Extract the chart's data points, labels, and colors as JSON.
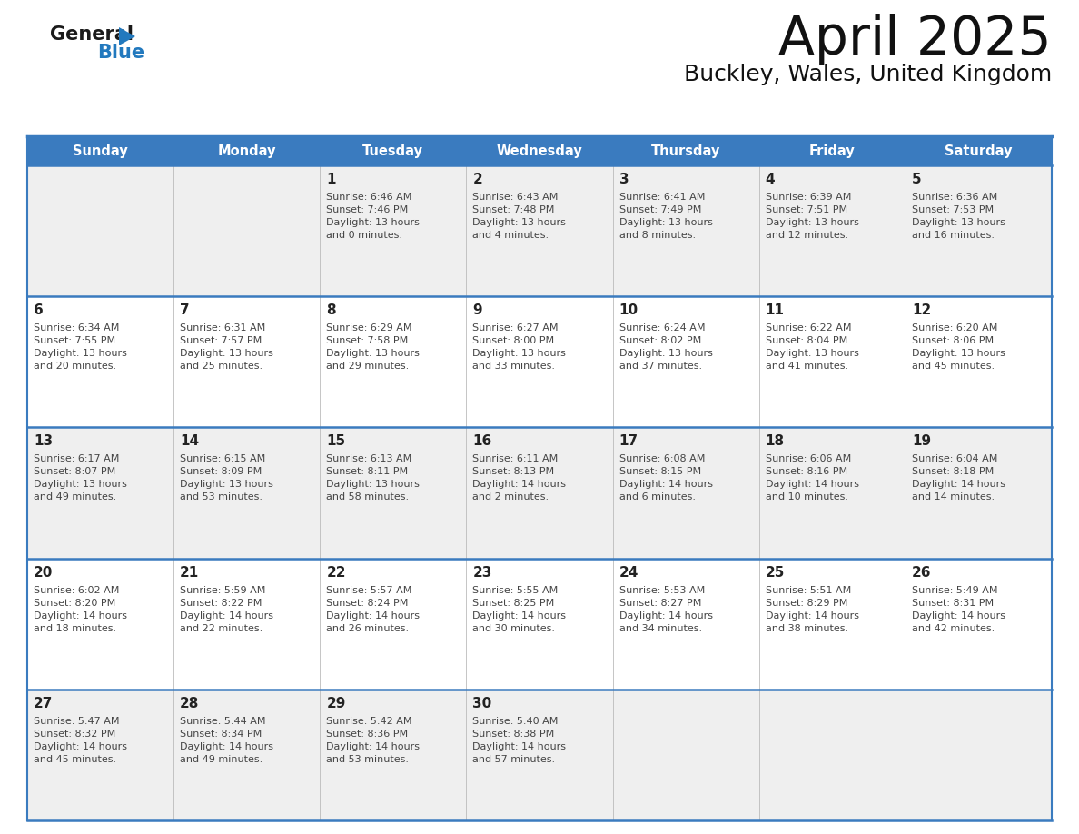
{
  "title": "April 2025",
  "subtitle": "Buckley, Wales, United Kingdom",
  "header_bg_color": "#3a7bbf",
  "header_text_color": "#ffffff",
  "days_of_week": [
    "Sunday",
    "Monday",
    "Tuesday",
    "Wednesday",
    "Thursday",
    "Friday",
    "Saturday"
  ],
  "row_bg_colors": [
    "#efefef",
    "#ffffff",
    "#efefef",
    "#ffffff",
    "#efefef"
  ],
  "grid_line_color": "#3a7bbf",
  "cell_border_color": "#3a7bbf",
  "text_color": "#444444",
  "day_num_color": "#222222",
  "logo_color": "#2279be",
  "logo_black": "#1a1a1a",
  "weeks": [
    {
      "days": [
        {
          "date": "",
          "info": ""
        },
        {
          "date": "",
          "info": ""
        },
        {
          "date": "1",
          "info": "Sunrise: 6:46 AM\nSunset: 7:46 PM\nDaylight: 13 hours\nand 0 minutes."
        },
        {
          "date": "2",
          "info": "Sunrise: 6:43 AM\nSunset: 7:48 PM\nDaylight: 13 hours\nand 4 minutes."
        },
        {
          "date": "3",
          "info": "Sunrise: 6:41 AM\nSunset: 7:49 PM\nDaylight: 13 hours\nand 8 minutes."
        },
        {
          "date": "4",
          "info": "Sunrise: 6:39 AM\nSunset: 7:51 PM\nDaylight: 13 hours\nand 12 minutes."
        },
        {
          "date": "5",
          "info": "Sunrise: 6:36 AM\nSunset: 7:53 PM\nDaylight: 13 hours\nand 16 minutes."
        }
      ]
    },
    {
      "days": [
        {
          "date": "6",
          "info": "Sunrise: 6:34 AM\nSunset: 7:55 PM\nDaylight: 13 hours\nand 20 minutes."
        },
        {
          "date": "7",
          "info": "Sunrise: 6:31 AM\nSunset: 7:57 PM\nDaylight: 13 hours\nand 25 minutes."
        },
        {
          "date": "8",
          "info": "Sunrise: 6:29 AM\nSunset: 7:58 PM\nDaylight: 13 hours\nand 29 minutes."
        },
        {
          "date": "9",
          "info": "Sunrise: 6:27 AM\nSunset: 8:00 PM\nDaylight: 13 hours\nand 33 minutes."
        },
        {
          "date": "10",
          "info": "Sunrise: 6:24 AM\nSunset: 8:02 PM\nDaylight: 13 hours\nand 37 minutes."
        },
        {
          "date": "11",
          "info": "Sunrise: 6:22 AM\nSunset: 8:04 PM\nDaylight: 13 hours\nand 41 minutes."
        },
        {
          "date": "12",
          "info": "Sunrise: 6:20 AM\nSunset: 8:06 PM\nDaylight: 13 hours\nand 45 minutes."
        }
      ]
    },
    {
      "days": [
        {
          "date": "13",
          "info": "Sunrise: 6:17 AM\nSunset: 8:07 PM\nDaylight: 13 hours\nand 49 minutes."
        },
        {
          "date": "14",
          "info": "Sunrise: 6:15 AM\nSunset: 8:09 PM\nDaylight: 13 hours\nand 53 minutes."
        },
        {
          "date": "15",
          "info": "Sunrise: 6:13 AM\nSunset: 8:11 PM\nDaylight: 13 hours\nand 58 minutes."
        },
        {
          "date": "16",
          "info": "Sunrise: 6:11 AM\nSunset: 8:13 PM\nDaylight: 14 hours\nand 2 minutes."
        },
        {
          "date": "17",
          "info": "Sunrise: 6:08 AM\nSunset: 8:15 PM\nDaylight: 14 hours\nand 6 minutes."
        },
        {
          "date": "18",
          "info": "Sunrise: 6:06 AM\nSunset: 8:16 PM\nDaylight: 14 hours\nand 10 minutes."
        },
        {
          "date": "19",
          "info": "Sunrise: 6:04 AM\nSunset: 8:18 PM\nDaylight: 14 hours\nand 14 minutes."
        }
      ]
    },
    {
      "days": [
        {
          "date": "20",
          "info": "Sunrise: 6:02 AM\nSunset: 8:20 PM\nDaylight: 14 hours\nand 18 minutes."
        },
        {
          "date": "21",
          "info": "Sunrise: 5:59 AM\nSunset: 8:22 PM\nDaylight: 14 hours\nand 22 minutes."
        },
        {
          "date": "22",
          "info": "Sunrise: 5:57 AM\nSunset: 8:24 PM\nDaylight: 14 hours\nand 26 minutes."
        },
        {
          "date": "23",
          "info": "Sunrise: 5:55 AM\nSunset: 8:25 PM\nDaylight: 14 hours\nand 30 minutes."
        },
        {
          "date": "24",
          "info": "Sunrise: 5:53 AM\nSunset: 8:27 PM\nDaylight: 14 hours\nand 34 minutes."
        },
        {
          "date": "25",
          "info": "Sunrise: 5:51 AM\nSunset: 8:29 PM\nDaylight: 14 hours\nand 38 minutes."
        },
        {
          "date": "26",
          "info": "Sunrise: 5:49 AM\nSunset: 8:31 PM\nDaylight: 14 hours\nand 42 minutes."
        }
      ]
    },
    {
      "days": [
        {
          "date": "27",
          "info": "Sunrise: 5:47 AM\nSunset: 8:32 PM\nDaylight: 14 hours\nand 45 minutes."
        },
        {
          "date": "28",
          "info": "Sunrise: 5:44 AM\nSunset: 8:34 PM\nDaylight: 14 hours\nand 49 minutes."
        },
        {
          "date": "29",
          "info": "Sunrise: 5:42 AM\nSunset: 8:36 PM\nDaylight: 14 hours\nand 53 minutes."
        },
        {
          "date": "30",
          "info": "Sunrise: 5:40 AM\nSunset: 8:38 PM\nDaylight: 14 hours\nand 57 minutes."
        },
        {
          "date": "",
          "info": ""
        },
        {
          "date": "",
          "info": ""
        },
        {
          "date": "",
          "info": ""
        }
      ]
    }
  ]
}
